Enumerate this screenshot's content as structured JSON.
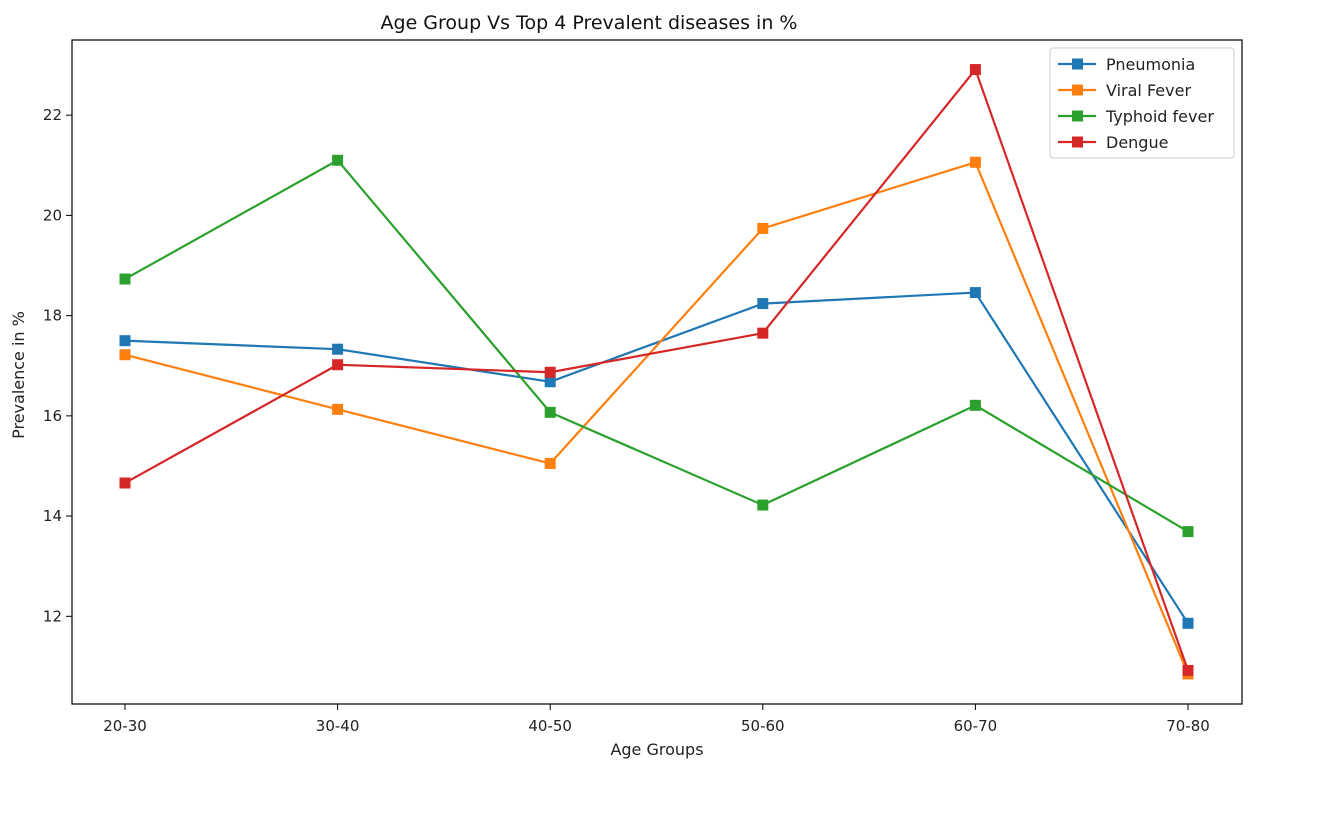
{
  "chart_data": {
    "type": "line",
    "title": "Age Group Vs Top 4 Prevalent diseases in %",
    "xlabel": "Age Groups",
    "ylabel": "Prevalence in %",
    "categories": [
      "20-30",
      "30-40",
      "40-50",
      "50-60",
      "60-70",
      "70-80"
    ],
    "ylim": [
      10.25,
      23.5
    ],
    "yticks": [
      12,
      14,
      16,
      18,
      20,
      22
    ],
    "grid": false,
    "legend_position": "top-right",
    "marker": "square",
    "series": [
      {
        "name": "Pneumonia",
        "color": "#1f77b4",
        "values": [
          17.5,
          17.33,
          16.68,
          18.24,
          18.46,
          11.86
        ]
      },
      {
        "name": "Viral Fever",
        "color": "#ff7f0e",
        "values": [
          17.22,
          16.13,
          15.05,
          19.74,
          21.06,
          10.85
        ]
      },
      {
        "name": "Typhoid fever",
        "color": "#2ca02c",
        "values": [
          18.73,
          21.1,
          16.07,
          14.22,
          16.21,
          13.69
        ]
      },
      {
        "name": "Dengue",
        "color": "#d62728",
        "values": [
          14.66,
          17.02,
          16.87,
          17.65,
          22.91,
          10.92
        ]
      }
    ]
  }
}
